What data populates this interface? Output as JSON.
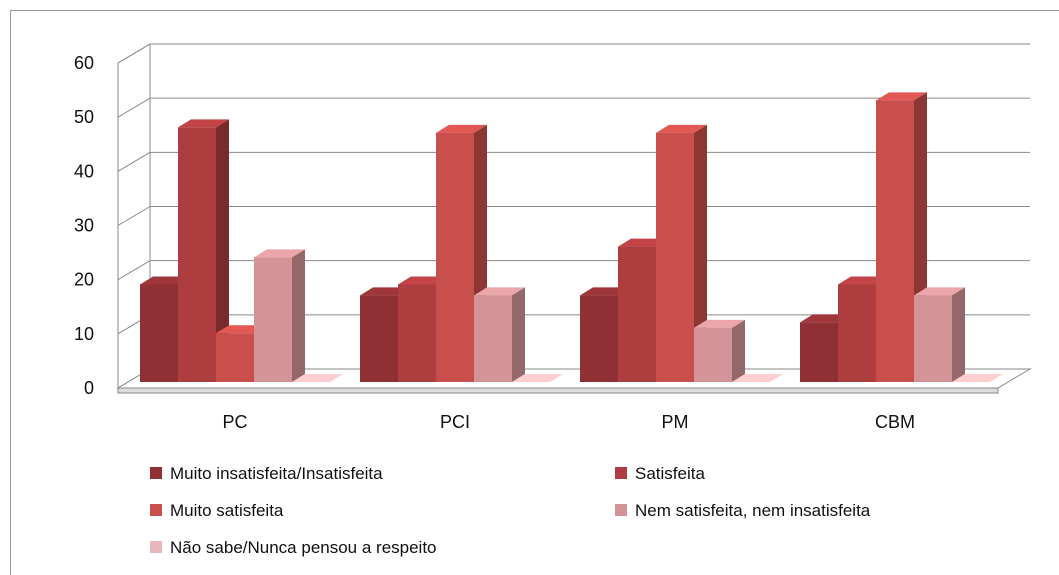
{
  "chart_data": {
    "type": "bar",
    "title": "",
    "xlabel": "",
    "ylabel": "",
    "ylim": [
      0,
      60
    ],
    "yticks": [
      "0",
      "10",
      "20",
      "30",
      "40",
      "50",
      "60"
    ],
    "grid": true,
    "legend_position": "bottom",
    "categories": [
      "PC",
      "PCI",
      "PM",
      "CBM"
    ],
    "series": [
      {
        "name": "Muito insatisfeita/Insatisfeita",
        "color": "#8e3034",
        "values": [
          18,
          16,
          16,
          11
        ]
      },
      {
        "name": "Satisfeita",
        "color": "#ad3d3f",
        "values": [
          47,
          18,
          25,
          18
        ]
      },
      {
        "name": "Muito satisfeita",
        "color": "#c94f4c",
        "values": [
          9,
          46,
          46,
          52
        ]
      },
      {
        "name": "Nem satisfeita, nem insatisfeita",
        "color": "#d29497",
        "values": [
          23,
          16,
          10,
          16
        ]
      },
      {
        "name": "Não sabe/Nunca pensou a respeito",
        "color": "#e7b8bb",
        "values": [
          0,
          0,
          0,
          0
        ]
      }
    ]
  }
}
